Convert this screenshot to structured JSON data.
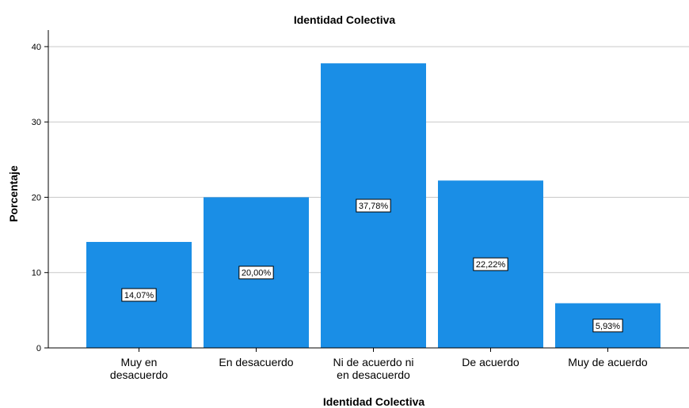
{
  "chart_data": {
    "type": "bar",
    "title": "Identidad Colectiva",
    "xlabel": "Identidad Colectiva",
    "ylabel": "Porcentaje",
    "categories": [
      [
        "Muy en",
        "desacuerdo"
      ],
      [
        "En desacuerdo"
      ],
      [
        "Ni de acuerdo ni",
        "en desacuerdo"
      ],
      [
        "De acuerdo"
      ],
      [
        "Muy de acuerdo"
      ]
    ],
    "values": [
      14.07,
      20.0,
      37.78,
      22.22,
      5.93
    ],
    "data_labels": [
      "14,07%",
      "20,00%",
      "37,78%",
      "22,22%",
      "5,93%"
    ],
    "yticks": [
      0,
      10,
      20,
      30,
      40
    ],
    "ylim": [
      0,
      40
    ],
    "grid": true,
    "colors": {
      "bar": "#1a8ee6",
      "grid": "#c8c8c8",
      "axis": "#000000"
    }
  }
}
